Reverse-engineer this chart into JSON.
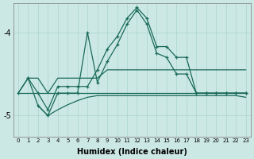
{
  "xlabel": "Humidex (Indice chaleur)",
  "background_color": "#cce8e4",
  "grid_color": "#aad4cc",
  "line_color": "#1a6b5a",
  "xlim": [
    -0.5,
    23.5
  ],
  "ylim": [
    -5.25,
    -3.65
  ],
  "yticks": [
    -5,
    -4
  ],
  "line1": {
    "x": [
      0,
      1,
      2,
      3,
      4,
      5,
      6,
      7,
      8,
      9,
      10,
      11,
      12,
      13,
      14,
      15,
      16,
      17,
      18,
      19,
      20,
      21,
      22,
      23
    ],
    "y": [
      -4.73,
      -4.73,
      -4.73,
      -4.73,
      -4.73,
      -4.73,
      -4.73,
      -4.73,
      -4.73,
      -4.73,
      -4.73,
      -4.73,
      -4.73,
      -4.73,
      -4.73,
      -4.73,
      -4.73,
      -4.73,
      -4.73,
      -4.73,
      -4.73,
      -4.73,
      -4.73,
      -4.73
    ]
  },
  "line2": {
    "x": [
      0,
      1,
      2,
      3,
      4,
      5,
      6,
      7,
      8,
      9,
      10,
      11,
      12,
      13,
      14,
      15,
      16,
      17,
      18,
      19,
      20,
      21,
      22,
      23
    ],
    "y": [
      -4.73,
      -4.55,
      -4.55,
      -4.73,
      -4.55,
      -4.55,
      -4.55,
      -4.55,
      -4.55,
      -4.45,
      -4.45,
      -4.45,
      -4.45,
      -4.45,
      -4.45,
      -4.45,
      -4.45,
      -4.45,
      -4.45,
      -4.45,
      -4.45,
      -4.45,
      -4.45,
      -4.45
    ]
  },
  "line3": {
    "x": [
      2,
      3,
      4,
      5,
      6,
      7,
      8,
      9,
      10,
      11,
      12,
      13,
      14,
      15,
      16,
      17,
      18,
      19,
      20,
      21,
      22,
      23
    ],
    "y": [
      -4.88,
      -5.0,
      -4.93,
      -4.87,
      -4.82,
      -4.78,
      -4.76,
      -4.76,
      -4.76,
      -4.76,
      -4.76,
      -4.76,
      -4.76,
      -4.76,
      -4.76,
      -4.76,
      -4.76,
      -4.76,
      -4.76,
      -4.76,
      -4.76,
      -4.78
    ]
  },
  "line4_spiky": {
    "x": [
      0,
      1,
      2,
      3,
      4,
      5,
      6,
      7,
      8,
      9,
      10,
      11,
      12,
      13,
      14,
      15,
      16,
      17,
      18,
      19,
      20,
      21,
      22,
      23
    ],
    "y": [
      -4.73,
      -4.55,
      -4.88,
      -5.0,
      -4.73,
      -4.73,
      -4.73,
      -4.0,
      -4.6,
      -4.35,
      -4.15,
      -3.9,
      -3.73,
      -3.9,
      -4.25,
      -4.3,
      -4.5,
      -4.5,
      -4.73,
      -4.73,
      -4.73,
      -4.73,
      -4.73,
      -4.73
    ]
  },
  "line5_spiky": {
    "x": [
      1,
      2,
      3,
      4,
      5,
      6,
      7,
      8,
      9,
      10,
      11,
      12,
      13,
      14,
      15,
      16,
      17,
      18,
      19,
      20,
      21,
      22,
      23
    ],
    "y": [
      -4.55,
      -4.73,
      -4.93,
      -4.65,
      -4.65,
      -4.65,
      -4.65,
      -4.45,
      -4.2,
      -4.05,
      -3.83,
      -3.7,
      -3.83,
      -4.17,
      -4.17,
      -4.3,
      -4.3,
      -4.73,
      -4.73,
      -4.73,
      -4.73,
      -4.73,
      -4.73
    ]
  }
}
